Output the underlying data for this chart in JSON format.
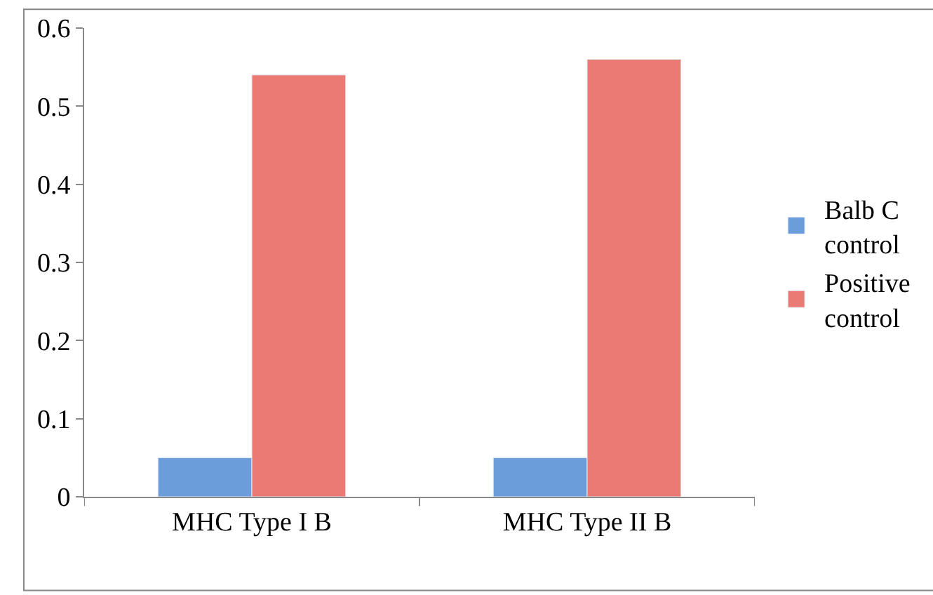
{
  "chart_data": {
    "type": "bar",
    "categories": [
      "MHC Type I B",
      "MHC Type II B"
    ],
    "series": [
      {
        "name": "Balb C control",
        "color": "#6b9ddb",
        "values": [
          0.05,
          0.05
        ]
      },
      {
        "name": "Positive control",
        "color": "#ec7a74",
        "values": [
          0.54,
          0.56
        ]
      }
    ],
    "ylim": [
      0,
      0.6
    ],
    "yticks": [
      0,
      0.1,
      0.2,
      0.3,
      0.4,
      0.5,
      0.6
    ],
    "legend": "right"
  }
}
